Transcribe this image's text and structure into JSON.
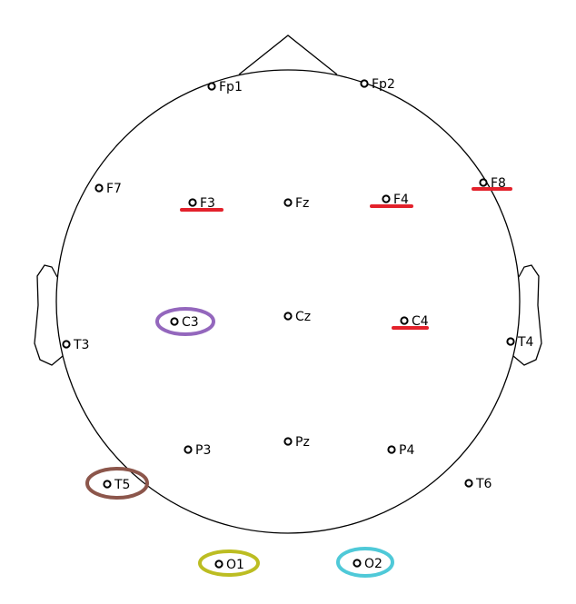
{
  "colors": {
    "outline": "#000000",
    "electrode": "#000000",
    "red": "#e3212b",
    "purple": "#9467bd",
    "brown": "#8c564b",
    "olive": "#bcbd22",
    "cyan": "#4fc9d8"
  },
  "electrodes": [
    {
      "id": "fp1",
      "label": "Fp1"
    },
    {
      "id": "fp2",
      "label": "Fp2"
    },
    {
      "id": "f7",
      "label": "F7"
    },
    {
      "id": "f3",
      "label": "F3"
    },
    {
      "id": "fz",
      "label": "Fz"
    },
    {
      "id": "f4",
      "label": "F4"
    },
    {
      "id": "f8",
      "label": "F8"
    },
    {
      "id": "t3",
      "label": "T3"
    },
    {
      "id": "c3",
      "label": "C3"
    },
    {
      "id": "cz",
      "label": "Cz"
    },
    {
      "id": "c4",
      "label": "C4"
    },
    {
      "id": "t4",
      "label": "T4"
    },
    {
      "id": "t5",
      "label": "T5"
    },
    {
      "id": "p3",
      "label": "P3"
    },
    {
      "id": "pz",
      "label": "Pz"
    },
    {
      "id": "p4",
      "label": "P4"
    },
    {
      "id": "t6",
      "label": "T6"
    },
    {
      "id": "o1",
      "label": "O1"
    },
    {
      "id": "o2",
      "label": "O2"
    }
  ]
}
